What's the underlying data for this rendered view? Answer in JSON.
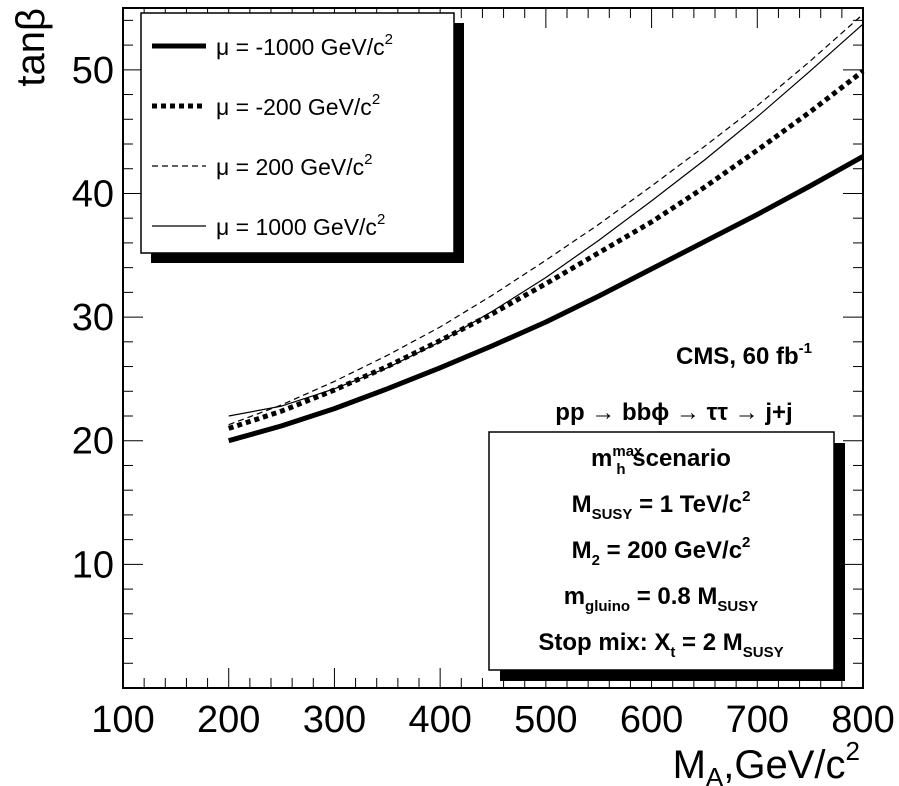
{
  "chart_data": {
    "type": "line",
    "xlabel": "M",
    "xlabel_sub": "A",
    "xlabel_units": ",GeV/c",
    "xlabel_units_sup": "2",
    "ylabel": "tanβ",
    "xlim": [
      100,
      800
    ],
    "ylim": [
      0,
      55
    ],
    "xticks": [
      100,
      200,
      300,
      400,
      500,
      600,
      700,
      800
    ],
    "yticks": [
      10,
      20,
      30,
      40,
      50
    ],
    "legend_position": "top-left",
    "series": [
      {
        "name": "μ = -1000 GeV/c",
        "name_sup": "2",
        "style": "thick-solid",
        "x": [
          200,
          250,
          300,
          350,
          400,
          450,
          500,
          550,
          600,
          650,
          700,
          750,
          800
        ],
        "y": [
          20.0,
          21.2,
          22.6,
          24.2,
          25.9,
          27.7,
          29.6,
          31.7,
          33.9,
          36.1,
          38.3,
          40.6,
          43.0
        ]
      },
      {
        "name": "μ = -200 GeV/c",
        "name_sup": "2",
        "style": "thick-dotted",
        "x": [
          200,
          250,
          300,
          350,
          400,
          450,
          500,
          550,
          600,
          650,
          700,
          750,
          800
        ],
        "y": [
          21.0,
          22.4,
          24.1,
          26.0,
          28.1,
          30.3,
          32.7,
          35.2,
          37.7,
          40.5,
          43.5,
          46.6,
          49.9
        ]
      },
      {
        "name": "μ = 200 GeV/c",
        "name_sup": "2",
        "style": "thin-dashed",
        "x": [
          200,
          250,
          300,
          350,
          400,
          450,
          500,
          550,
          600,
          650,
          700,
          750,
          800
        ],
        "y": [
          21.3,
          22.9,
          24.8,
          26.9,
          29.2,
          31.8,
          34.6,
          37.5,
          40.6,
          43.8,
          47.1,
          50.7,
          54.5
        ]
      },
      {
        "name": "μ = 1000 GeV/c",
        "name_sup": "2",
        "style": "thin-solid",
        "x": [
          200,
          250,
          300,
          350,
          400,
          450,
          500,
          550,
          600,
          650,
          700,
          750,
          800
        ],
        "y": [
          22.0,
          22.8,
          24.2,
          25.9,
          28.0,
          30.5,
          33.2,
          36.2,
          39.4,
          42.7,
          46.2,
          49.9,
          53.7
        ]
      }
    ],
    "annotations": {
      "experiment": "CMS, 60 fb",
      "experiment_sup": "-1",
      "process": "pp → bbϕ → ττ → j+j",
      "box_lines": [
        {
          "main": "m",
          "sub": "h",
          "sup": "max",
          "rest": " scenario"
        },
        {
          "main": "M",
          "sub": "SUSY",
          "rest": " = 1 TeV/c",
          "rest_sup": "2"
        },
        {
          "main": "M",
          "sub": "2",
          "rest": " = 200 GeV/c",
          "rest_sup": "2"
        },
        {
          "main": "m",
          "sub": "gluino",
          "rest": " = 0.8 M",
          "rest_sub": "SUSY"
        },
        {
          "main": "Stop mix: X",
          "sub": "t",
          "rest": " = 2 M",
          "rest_sub": "SUSY"
        }
      ]
    }
  }
}
